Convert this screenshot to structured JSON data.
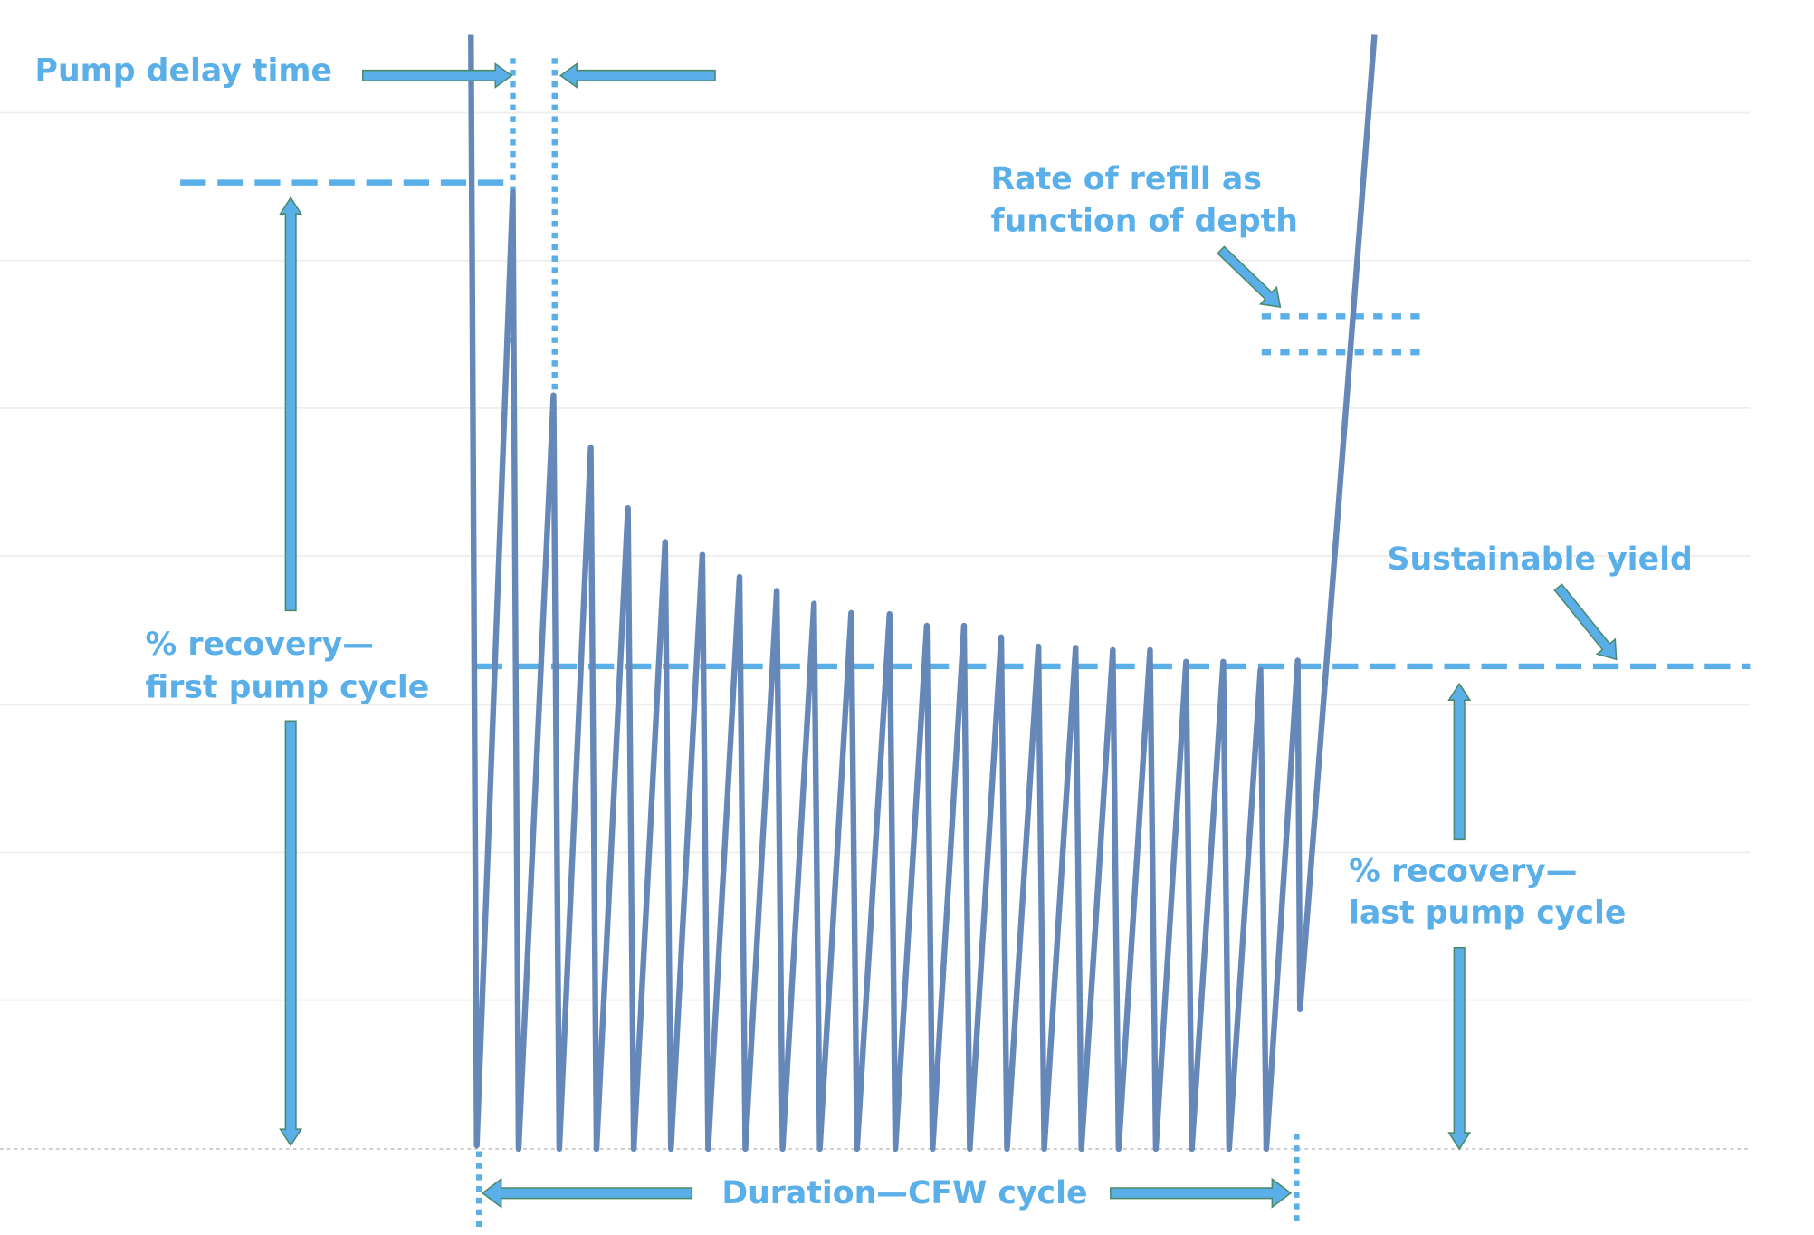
{
  "labels": {
    "pump_delay": "Pump delay time",
    "refill": [
      "Rate of refill as",
      "function of depth"
    ],
    "sustainable_yield": "Sustainable yield",
    "recovery_first": [
      "% recovery—",
      "first pump cycle"
    ],
    "recovery_last": [
      "% recovery—",
      "last pump cycle"
    ],
    "duration": "Duration—CFW cycle"
  }
}
